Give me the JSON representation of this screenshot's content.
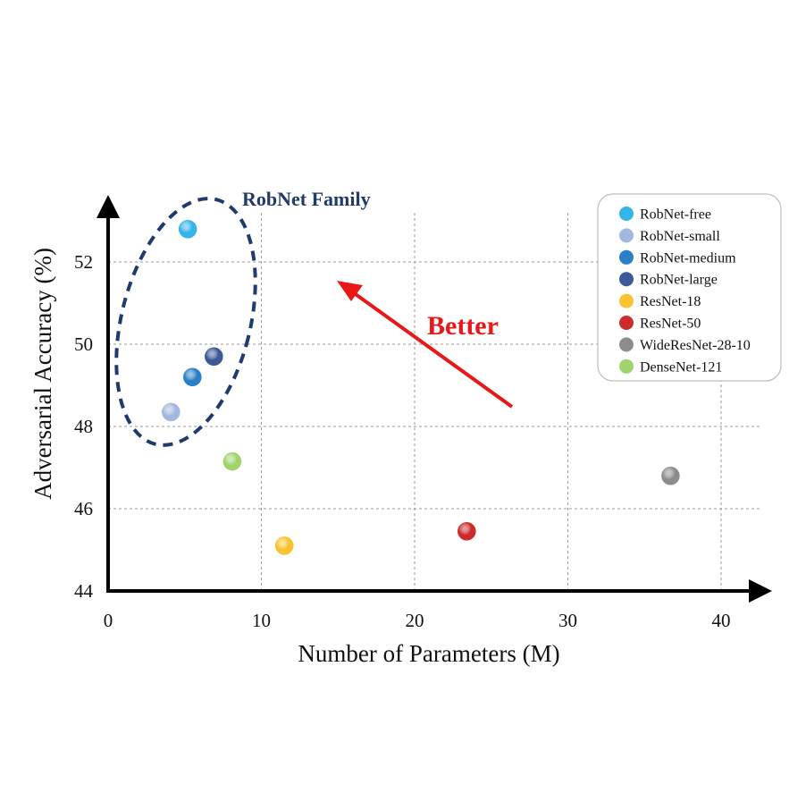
{
  "chart_data": {
    "type": "scatter",
    "xlabel": "Number of Parameters (M)",
    "ylabel": "Adversarial Accuracy (%)",
    "xlim": [
      0,
      42
    ],
    "ylim": [
      44,
      53.5
    ],
    "xticks": [
      0,
      10,
      20,
      30,
      40
    ],
    "yticks": [
      44,
      46,
      48,
      50,
      52
    ],
    "grid": true,
    "legend_position": "top-right",
    "series": [
      {
        "name": "RobNet-free",
        "color": "#35b4ea",
        "x": 5.2,
        "y": 52.8
      },
      {
        "name": "RobNet-small",
        "color": "#a3b8df",
        "x": 4.1,
        "y": 48.35
      },
      {
        "name": "RobNet-medium",
        "color": "#2a7fc6",
        "x": 5.5,
        "y": 49.2
      },
      {
        "name": "RobNet-large",
        "color": "#3c5a98",
        "x": 6.9,
        "y": 49.7
      },
      {
        "name": "ResNet-18",
        "color": "#f8c230",
        "x": 11.5,
        "y": 45.1
      },
      {
        "name": "ResNet-50",
        "color": "#cc2b2b",
        "x": 23.4,
        "y": 45.45
      },
      {
        "name": "WideResNet-28-10",
        "color": "#8c8c8c",
        "x": 36.7,
        "y": 46.8
      },
      {
        "name": "DenseNet-121",
        "color": "#9fd36c",
        "x": 8.1,
        "y": 47.15
      }
    ],
    "annotations": {
      "family_label": "RobNet Family",
      "family_color": "#1f3a6b",
      "better_label": "Better",
      "better_color": "#e81818"
    }
  }
}
